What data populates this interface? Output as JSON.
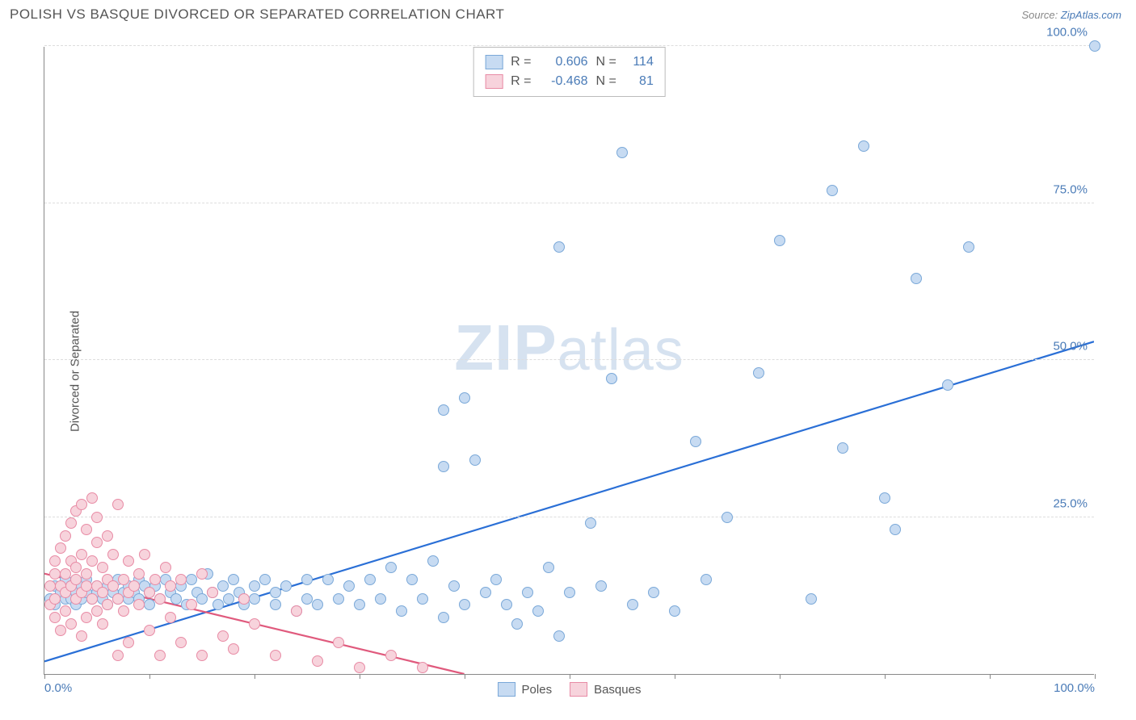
{
  "header": {
    "title": "POLISH VS BASQUE DIVORCED OR SEPARATED CORRELATION CHART",
    "source_prefix": "Source: ",
    "source_link": "ZipAtlas.com"
  },
  "chart": {
    "type": "scatter",
    "y_axis_label": "Divorced or Separated",
    "xlim": [
      0,
      100
    ],
    "ylim": [
      0,
      100
    ],
    "x_ticks": [
      0,
      10,
      20,
      30,
      40,
      50,
      60,
      70,
      80,
      90,
      100
    ],
    "x_tick_labels": {
      "0": "0.0%",
      "100": "100.0%"
    },
    "y_gridlines": [
      25,
      50,
      75,
      100
    ],
    "y_tick_labels": {
      "25": "25.0%",
      "50": "50.0%",
      "75": "75.0%",
      "100": "100.0%"
    },
    "background_color": "#ffffff",
    "grid_color": "#dddddd",
    "axis_color": "#888888",
    "tick_label_color": "#4a7bb7",
    "axis_label_color": "#555555",
    "marker_radius": 7,
    "marker_stroke_width": 1,
    "trend_line_width": 2.2,
    "watermark": {
      "bold": "ZIP",
      "rest": "atlas",
      "color": "#d6e2f0"
    },
    "series": [
      {
        "name": "Poles",
        "fill_color": "#c7dbf2",
        "stroke_color": "#7aa8d8",
        "trend_color": "#2a6fd6",
        "trend": {
          "x1": 0,
          "y1": 2,
          "x2": 100,
          "y2": 53
        },
        "R": "0.606",
        "N": "114",
        "points": [
          [
            0.5,
            12
          ],
          [
            1,
            14
          ],
          [
            1,
            11
          ],
          [
            1.5,
            13
          ],
          [
            2,
            12
          ],
          [
            2,
            13.5
          ],
          [
            2,
            15
          ],
          [
            2.5,
            12
          ],
          [
            2.5,
            14
          ],
          [
            3,
            13
          ],
          [
            3,
            11
          ],
          [
            3.5,
            14
          ],
          [
            3.5,
            12
          ],
          [
            4,
            13
          ],
          [
            4,
            15
          ],
          [
            4.5,
            12
          ],
          [
            5,
            13
          ],
          [
            5,
            14
          ],
          [
            5.5,
            12
          ],
          [
            6,
            14
          ],
          [
            6,
            11
          ],
          [
            6.5,
            13
          ],
          [
            7,
            12
          ],
          [
            7,
            15
          ],
          [
            7.5,
            13
          ],
          [
            8,
            12
          ],
          [
            8,
            14
          ],
          [
            8.5,
            13
          ],
          [
            9,
            12
          ],
          [
            9,
            15
          ],
          [
            9.5,
            14
          ],
          [
            10,
            13
          ],
          [
            10,
            11
          ],
          [
            10.5,
            14
          ],
          [
            11,
            12
          ],
          [
            11.5,
            15
          ],
          [
            12,
            13
          ],
          [
            12.5,
            12
          ],
          [
            13,
            14
          ],
          [
            13.5,
            11
          ],
          [
            14,
            15
          ],
          [
            14.5,
            13
          ],
          [
            15,
            12
          ],
          [
            15.5,
            16
          ],
          [
            16,
            13
          ],
          [
            16.5,
            11
          ],
          [
            17,
            14
          ],
          [
            17.5,
            12
          ],
          [
            18,
            15
          ],
          [
            18.5,
            13
          ],
          [
            19,
            11
          ],
          [
            20,
            14
          ],
          [
            20,
            12
          ],
          [
            21,
            15
          ],
          [
            22,
            13
          ],
          [
            22,
            11
          ],
          [
            23,
            14
          ],
          [
            24,
            10
          ],
          [
            25,
            15
          ],
          [
            25,
            12
          ],
          [
            26,
            11
          ],
          [
            27,
            15
          ],
          [
            28,
            12
          ],
          [
            29,
            14
          ],
          [
            30,
            11
          ],
          [
            31,
            15
          ],
          [
            32,
            12
          ],
          [
            33,
            17
          ],
          [
            34,
            10
          ],
          [
            35,
            15
          ],
          [
            36,
            12
          ],
          [
            37,
            18
          ],
          [
            38,
            9
          ],
          [
            38,
            42
          ],
          [
            38,
            33
          ],
          [
            39,
            14
          ],
          [
            40,
            44
          ],
          [
            40,
            11
          ],
          [
            41,
            34
          ],
          [
            42,
            13
          ],
          [
            43,
            15
          ],
          [
            44,
            11
          ],
          [
            45,
            8
          ],
          [
            46,
            13
          ],
          [
            47,
            10
          ],
          [
            48,
            17
          ],
          [
            49,
            6
          ],
          [
            49,
            68
          ],
          [
            50,
            13
          ],
          [
            52,
            24
          ],
          [
            53,
            14
          ],
          [
            54,
            47
          ],
          [
            55,
            83
          ],
          [
            56,
            11
          ],
          [
            58,
            13
          ],
          [
            60,
            10
          ],
          [
            62,
            37
          ],
          [
            63,
            15
          ],
          [
            65,
            25
          ],
          [
            68,
            48
          ],
          [
            70,
            69
          ],
          [
            73,
            12
          ],
          [
            75,
            77
          ],
          [
            76,
            36
          ],
          [
            78,
            84
          ],
          [
            80,
            28
          ],
          [
            81,
            23
          ],
          [
            83,
            63
          ],
          [
            86,
            46
          ],
          [
            88,
            68
          ],
          [
            100,
            100
          ]
        ]
      },
      {
        "name": "Basques",
        "fill_color": "#f7d3dc",
        "stroke_color": "#e88ba5",
        "trend_color": "#e05a7d",
        "trend": {
          "x1": 0,
          "y1": 16,
          "x2": 40,
          "y2": 0
        },
        "R": "-0.468",
        "N": "81",
        "points": [
          [
            0.5,
            14
          ],
          [
            0.5,
            11
          ],
          [
            1,
            16
          ],
          [
            1,
            12
          ],
          [
            1,
            18
          ],
          [
            1,
            9
          ],
          [
            1.5,
            14
          ],
          [
            1.5,
            20
          ],
          [
            1.5,
            7
          ],
          [
            2,
            13
          ],
          [
            2,
            16
          ],
          [
            2,
            22
          ],
          [
            2,
            10
          ],
          [
            2.5,
            14
          ],
          [
            2.5,
            18
          ],
          [
            2.5,
            24
          ],
          [
            2.5,
            8
          ],
          [
            3,
            15
          ],
          [
            3,
            12
          ],
          [
            3,
            26
          ],
          [
            3,
            17
          ],
          [
            3.5,
            13
          ],
          [
            3.5,
            19
          ],
          [
            3.5,
            27
          ],
          [
            3.5,
            6
          ],
          [
            4,
            14
          ],
          [
            4,
            9
          ],
          [
            4,
            23
          ],
          [
            4,
            16
          ],
          [
            4.5,
            12
          ],
          [
            4.5,
            28
          ],
          [
            4.5,
            18
          ],
          [
            5,
            14
          ],
          [
            5,
            10
          ],
          [
            5,
            21
          ],
          [
            5,
            25
          ],
          [
            5.5,
            13
          ],
          [
            5.5,
            17
          ],
          [
            5.5,
            8
          ],
          [
            6,
            15
          ],
          [
            6,
            22
          ],
          [
            6,
            11
          ],
          [
            6.5,
            14
          ],
          [
            6.5,
            19
          ],
          [
            7,
            12
          ],
          [
            7,
            27
          ],
          [
            7,
            3
          ],
          [
            7.5,
            15
          ],
          [
            7.5,
            10
          ],
          [
            8,
            13
          ],
          [
            8,
            18
          ],
          [
            8,
            5
          ],
          [
            8.5,
            14
          ],
          [
            9,
            11
          ],
          [
            9,
            16
          ],
          [
            9.5,
            19
          ],
          [
            10,
            13
          ],
          [
            10,
            7
          ],
          [
            10.5,
            15
          ],
          [
            11,
            3
          ],
          [
            11,
            12
          ],
          [
            11.5,
            17
          ],
          [
            12,
            14
          ],
          [
            12,
            9
          ],
          [
            13,
            15
          ],
          [
            13,
            5
          ],
          [
            14,
            11
          ],
          [
            15,
            16
          ],
          [
            15,
            3
          ],
          [
            16,
            13
          ],
          [
            17,
            6
          ],
          [
            18,
            4
          ],
          [
            19,
            12
          ],
          [
            20,
            8
          ],
          [
            22,
            3
          ],
          [
            24,
            10
          ],
          [
            26,
            2
          ],
          [
            28,
            5
          ],
          [
            30,
            1
          ],
          [
            33,
            3
          ],
          [
            36,
            1
          ]
        ]
      }
    ],
    "legend_top": {
      "border_color": "#bbbbbb",
      "R_label": "R =",
      "N_label": "N ="
    },
    "legend_bottom": {
      "items": [
        "Poles",
        "Basques"
      ]
    }
  }
}
